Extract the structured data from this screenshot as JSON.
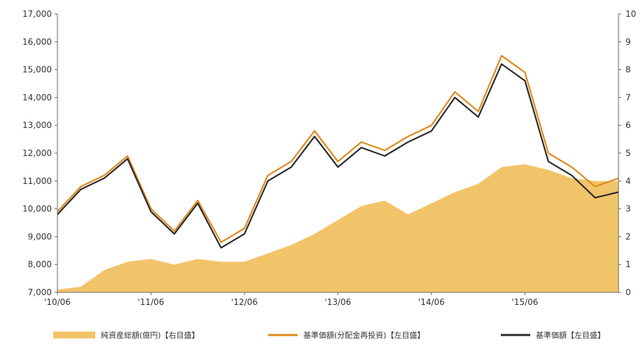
{
  "chart_data": {
    "type": "line",
    "left_axis": {
      "ylim": [
        7000,
        17000
      ],
      "ticks": [
        "7,000",
        "8,000",
        "9,000",
        "10,000",
        "11,000",
        "12,000",
        "13,000",
        "14,000",
        "15,000",
        "16,000",
        "17,000"
      ]
    },
    "right_axis": {
      "ylim": [
        0,
        10
      ],
      "ticks": [
        "0",
        "1",
        "2",
        "3",
        "4",
        "5",
        "6",
        "7",
        "8",
        "9",
        "10"
      ]
    },
    "x_ticks": [
      "'10/06",
      "'11/06",
      "'12/06",
      "'13/06",
      "'14/06",
      "'15/06"
    ],
    "x_range": [
      "2010-06",
      "2016-06"
    ],
    "grid": false,
    "legend_position": "bottom",
    "colors": {
      "area": "#f2c46a",
      "reinvest": "#e08a1e",
      "nav": "#2b2b2b"
    },
    "series": [
      {
        "name": "純資産総額(億円)【右目盛】",
        "kind": "area",
        "axis": "right",
        "x": [
          "2010-06",
          "2010-09",
          "2010-12",
          "2011-03",
          "2011-06",
          "2011-09",
          "2011-12",
          "2012-03",
          "2012-06",
          "2012-09",
          "2012-12",
          "2013-03",
          "2013-06",
          "2013-09",
          "2013-12",
          "2014-03",
          "2014-06",
          "2014-09",
          "2014-12",
          "2015-03",
          "2015-06",
          "2015-09",
          "2015-12",
          "2016-03",
          "2016-06"
        ],
        "values": [
          0.1,
          0.2,
          0.8,
          1.1,
          1.2,
          1.0,
          1.2,
          1.1,
          1.1,
          1.4,
          1.7,
          2.1,
          2.6,
          3.1,
          3.3,
          2.8,
          3.2,
          3.6,
          3.9,
          4.5,
          4.6,
          4.4,
          4.1,
          4.0,
          4.0
        ]
      },
      {
        "name": "基準価額(分配金再投資)【左目盛】",
        "kind": "line",
        "axis": "left",
        "x": [
          "2010-06",
          "2010-09",
          "2010-12",
          "2011-03",
          "2011-06",
          "2011-09",
          "2011-12",
          "2012-03",
          "2012-06",
          "2012-09",
          "2012-12",
          "2013-03",
          "2013-06",
          "2013-09",
          "2013-12",
          "2014-03",
          "2014-06",
          "2014-09",
          "2014-12",
          "2015-03",
          "2015-06",
          "2015-09",
          "2015-12",
          "2016-03",
          "2016-06"
        ],
        "values": [
          9900,
          10800,
          11200,
          11900,
          10000,
          9200,
          10300,
          8800,
          9300,
          11200,
          11700,
          12800,
          11700,
          12400,
          12100,
          12600,
          13000,
          14200,
          13500,
          15500,
          14900,
          12000,
          11500,
          10800,
          11100
        ]
      },
      {
        "name": "基準価額【左目盛】",
        "kind": "line",
        "axis": "left",
        "x": [
          "2010-06",
          "2010-09",
          "2010-12",
          "2011-03",
          "2011-06",
          "2011-09",
          "2011-12",
          "2012-03",
          "2012-06",
          "2012-09",
          "2012-12",
          "2013-03",
          "2013-06",
          "2013-09",
          "2013-12",
          "2014-03",
          "2014-06",
          "2014-09",
          "2014-12",
          "2015-03",
          "2015-06",
          "2015-09",
          "2015-12",
          "2016-03",
          "2016-06"
        ],
        "values": [
          9800,
          10700,
          11100,
          11800,
          9900,
          9100,
          10200,
          8600,
          9100,
          11000,
          11500,
          12600,
          11500,
          12200,
          11900,
          12400,
          12800,
          14000,
          13300,
          15200,
          14600,
          11700,
          11200,
          10400,
          10600
        ]
      }
    ]
  }
}
